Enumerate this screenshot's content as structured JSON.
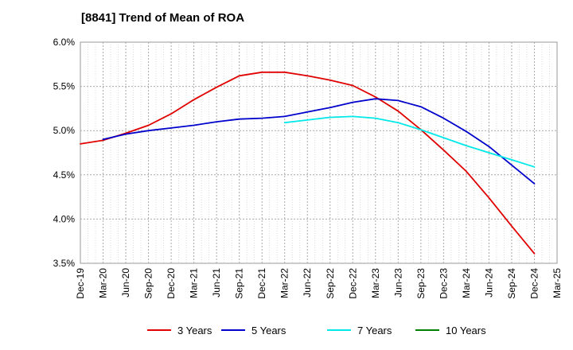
{
  "chart_data": {
    "type": "line",
    "title": "[8841]  Trend of Mean of ROA",
    "xlabel": "",
    "ylabel": "",
    "ylim": [
      3.5,
      6.0
    ],
    "yticks": [
      3.5,
      4.0,
      4.5,
      5.0,
      5.5,
      6.0
    ],
    "ytick_labels": [
      "3.5%",
      "4.0%",
      "4.5%",
      "5.0%",
      "5.5%",
      "6.0%"
    ],
    "categories": [
      "Dec-19",
      "Mar-20",
      "Jun-20",
      "Sep-20",
      "Dec-20",
      "Mar-21",
      "Jun-21",
      "Sep-21",
      "Dec-21",
      "Mar-22",
      "Jun-22",
      "Sep-22",
      "Dec-22",
      "Mar-23",
      "Jun-23",
      "Sep-23",
      "Dec-23",
      "Mar-24",
      "Jun-24",
      "Sep-24",
      "Dec-24",
      "Mar-25"
    ],
    "grid": true,
    "legend_position": "bottom",
    "series": [
      {
        "name": "3 Years",
        "color": "#e00000",
        "values": [
          4.85,
          4.89,
          4.97,
          5.06,
          5.19,
          5.35,
          5.49,
          5.62,
          5.66,
          5.66,
          5.62,
          5.57,
          5.51,
          5.38,
          5.22,
          5.01,
          4.78,
          4.54,
          4.24,
          3.92,
          3.61,
          null
        ]
      },
      {
        "name": "5 Years",
        "color": "#0000cc",
        "values": [
          null,
          4.9,
          4.96,
          5.0,
          5.03,
          5.06,
          5.1,
          5.13,
          5.14,
          5.16,
          5.21,
          5.26,
          5.32,
          5.36,
          5.34,
          5.27,
          5.14,
          4.99,
          4.82,
          4.61,
          4.4,
          null
        ]
      },
      {
        "name": "7 Years",
        "color": "#00e8e8",
        "values": [
          null,
          null,
          null,
          null,
          null,
          null,
          null,
          null,
          null,
          5.09,
          5.12,
          5.15,
          5.16,
          5.14,
          5.09,
          5.01,
          4.92,
          4.83,
          4.75,
          4.67,
          4.59,
          null
        ]
      },
      {
        "name": "10 Years",
        "color": "#008000",
        "values": [
          null,
          null,
          null,
          null,
          null,
          null,
          null,
          null,
          null,
          null,
          null,
          null,
          null,
          null,
          null,
          null,
          null,
          null,
          null,
          null,
          null,
          null
        ]
      }
    ]
  }
}
